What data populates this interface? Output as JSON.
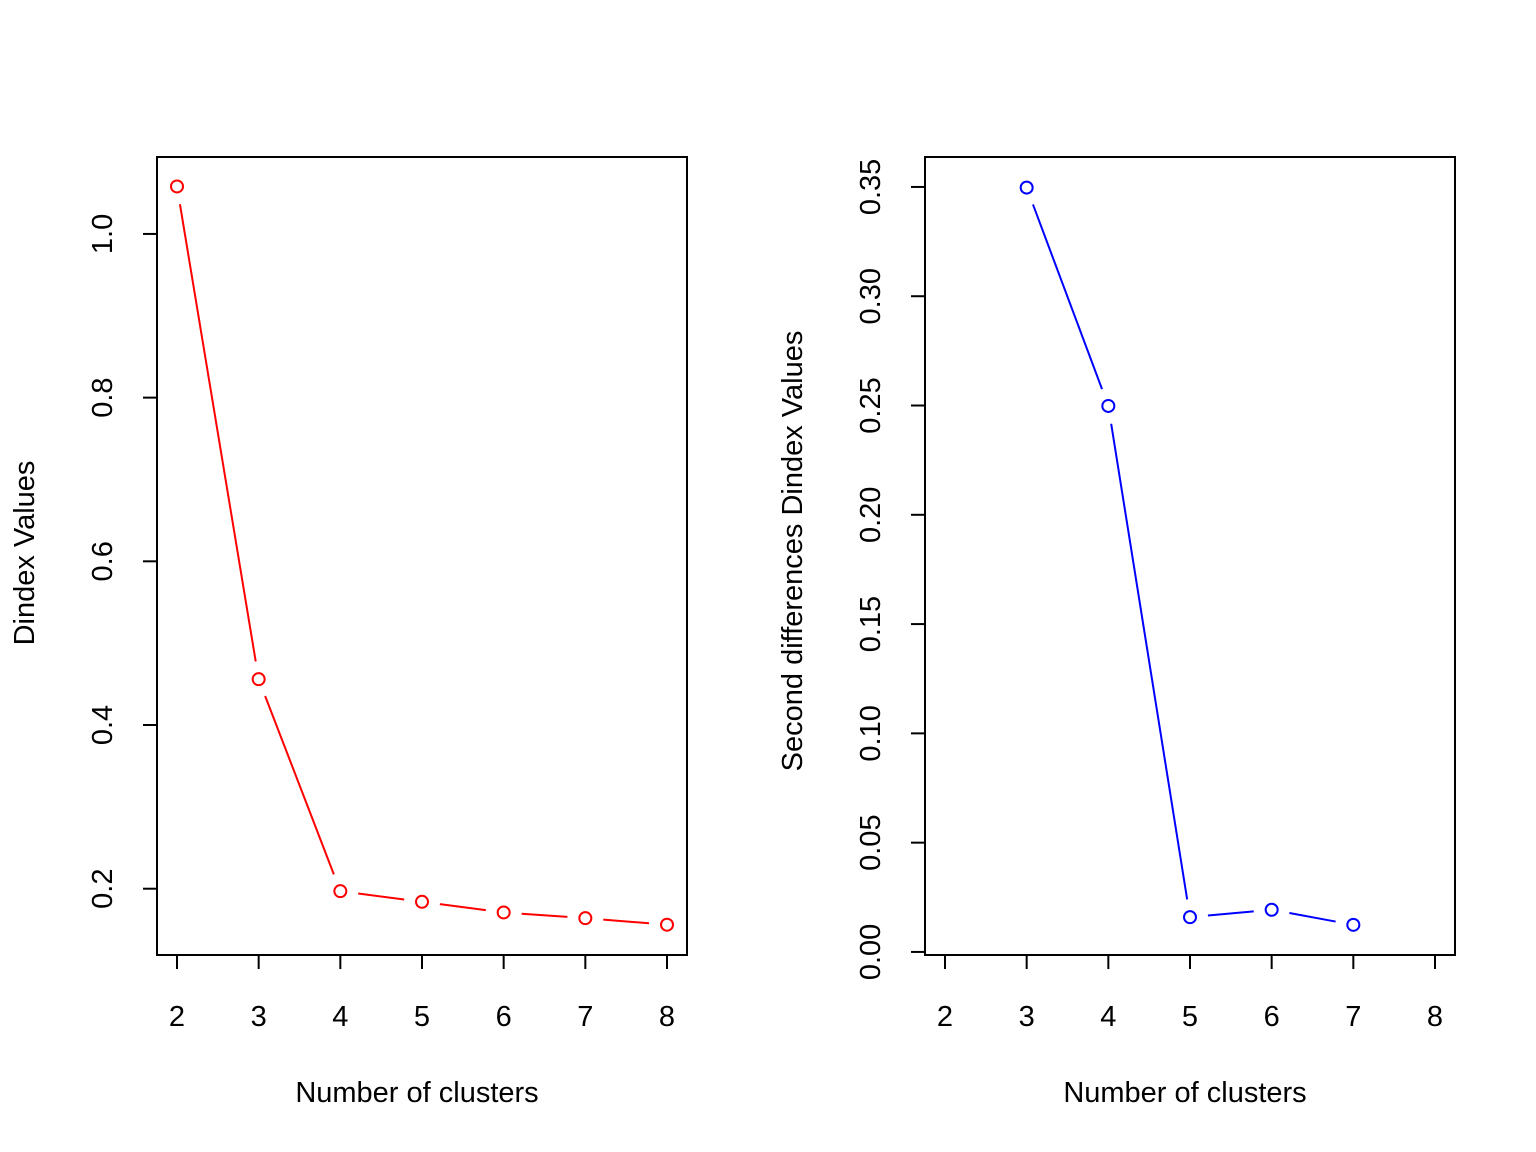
{
  "chart_data": [
    {
      "type": "line",
      "marker": "open-circle",
      "color": "#ff0000",
      "xlabel": "Number of clusters",
      "ylabel": "Dindex Values",
      "xlim": [
        2,
        8
      ],
      "ylim": [
        0.119,
        1.094
      ],
      "x_ticks": [
        "2",
        "3",
        "4",
        "5",
        "6",
        "7",
        "8"
      ],
      "y_ticks": [
        "0.2",
        "0.4",
        "0.6",
        "0.8",
        "1.0"
      ],
      "x": [
        2,
        3,
        4,
        5,
        6,
        7,
        8
      ],
      "values": [
        1.058,
        0.456,
        0.197,
        0.184,
        0.171,
        0.164,
        0.156
      ],
      "grid": false,
      "legend": "none"
    },
    {
      "type": "line",
      "marker": "open-circle",
      "color": "#0000ff",
      "xlabel": "Number of clusters",
      "ylabel": "Second differences Dindex Values",
      "xlim": [
        2,
        8
      ],
      "ylim": [
        -0.0014,
        0.3637
      ],
      "x_ticks": [
        "2",
        "3",
        "4",
        "5",
        "6",
        "7",
        "8"
      ],
      "y_ticks": [
        "0.00",
        "0.05",
        "0.10",
        "0.15",
        "0.20",
        "0.25",
        "0.30",
        "0.35"
      ],
      "x": [
        3,
        4,
        5,
        6,
        7
      ],
      "values": [
        0.3497,
        0.2498,
        0.0159,
        0.0193,
        0.0124
      ],
      "grid": false,
      "legend": "none"
    }
  ]
}
